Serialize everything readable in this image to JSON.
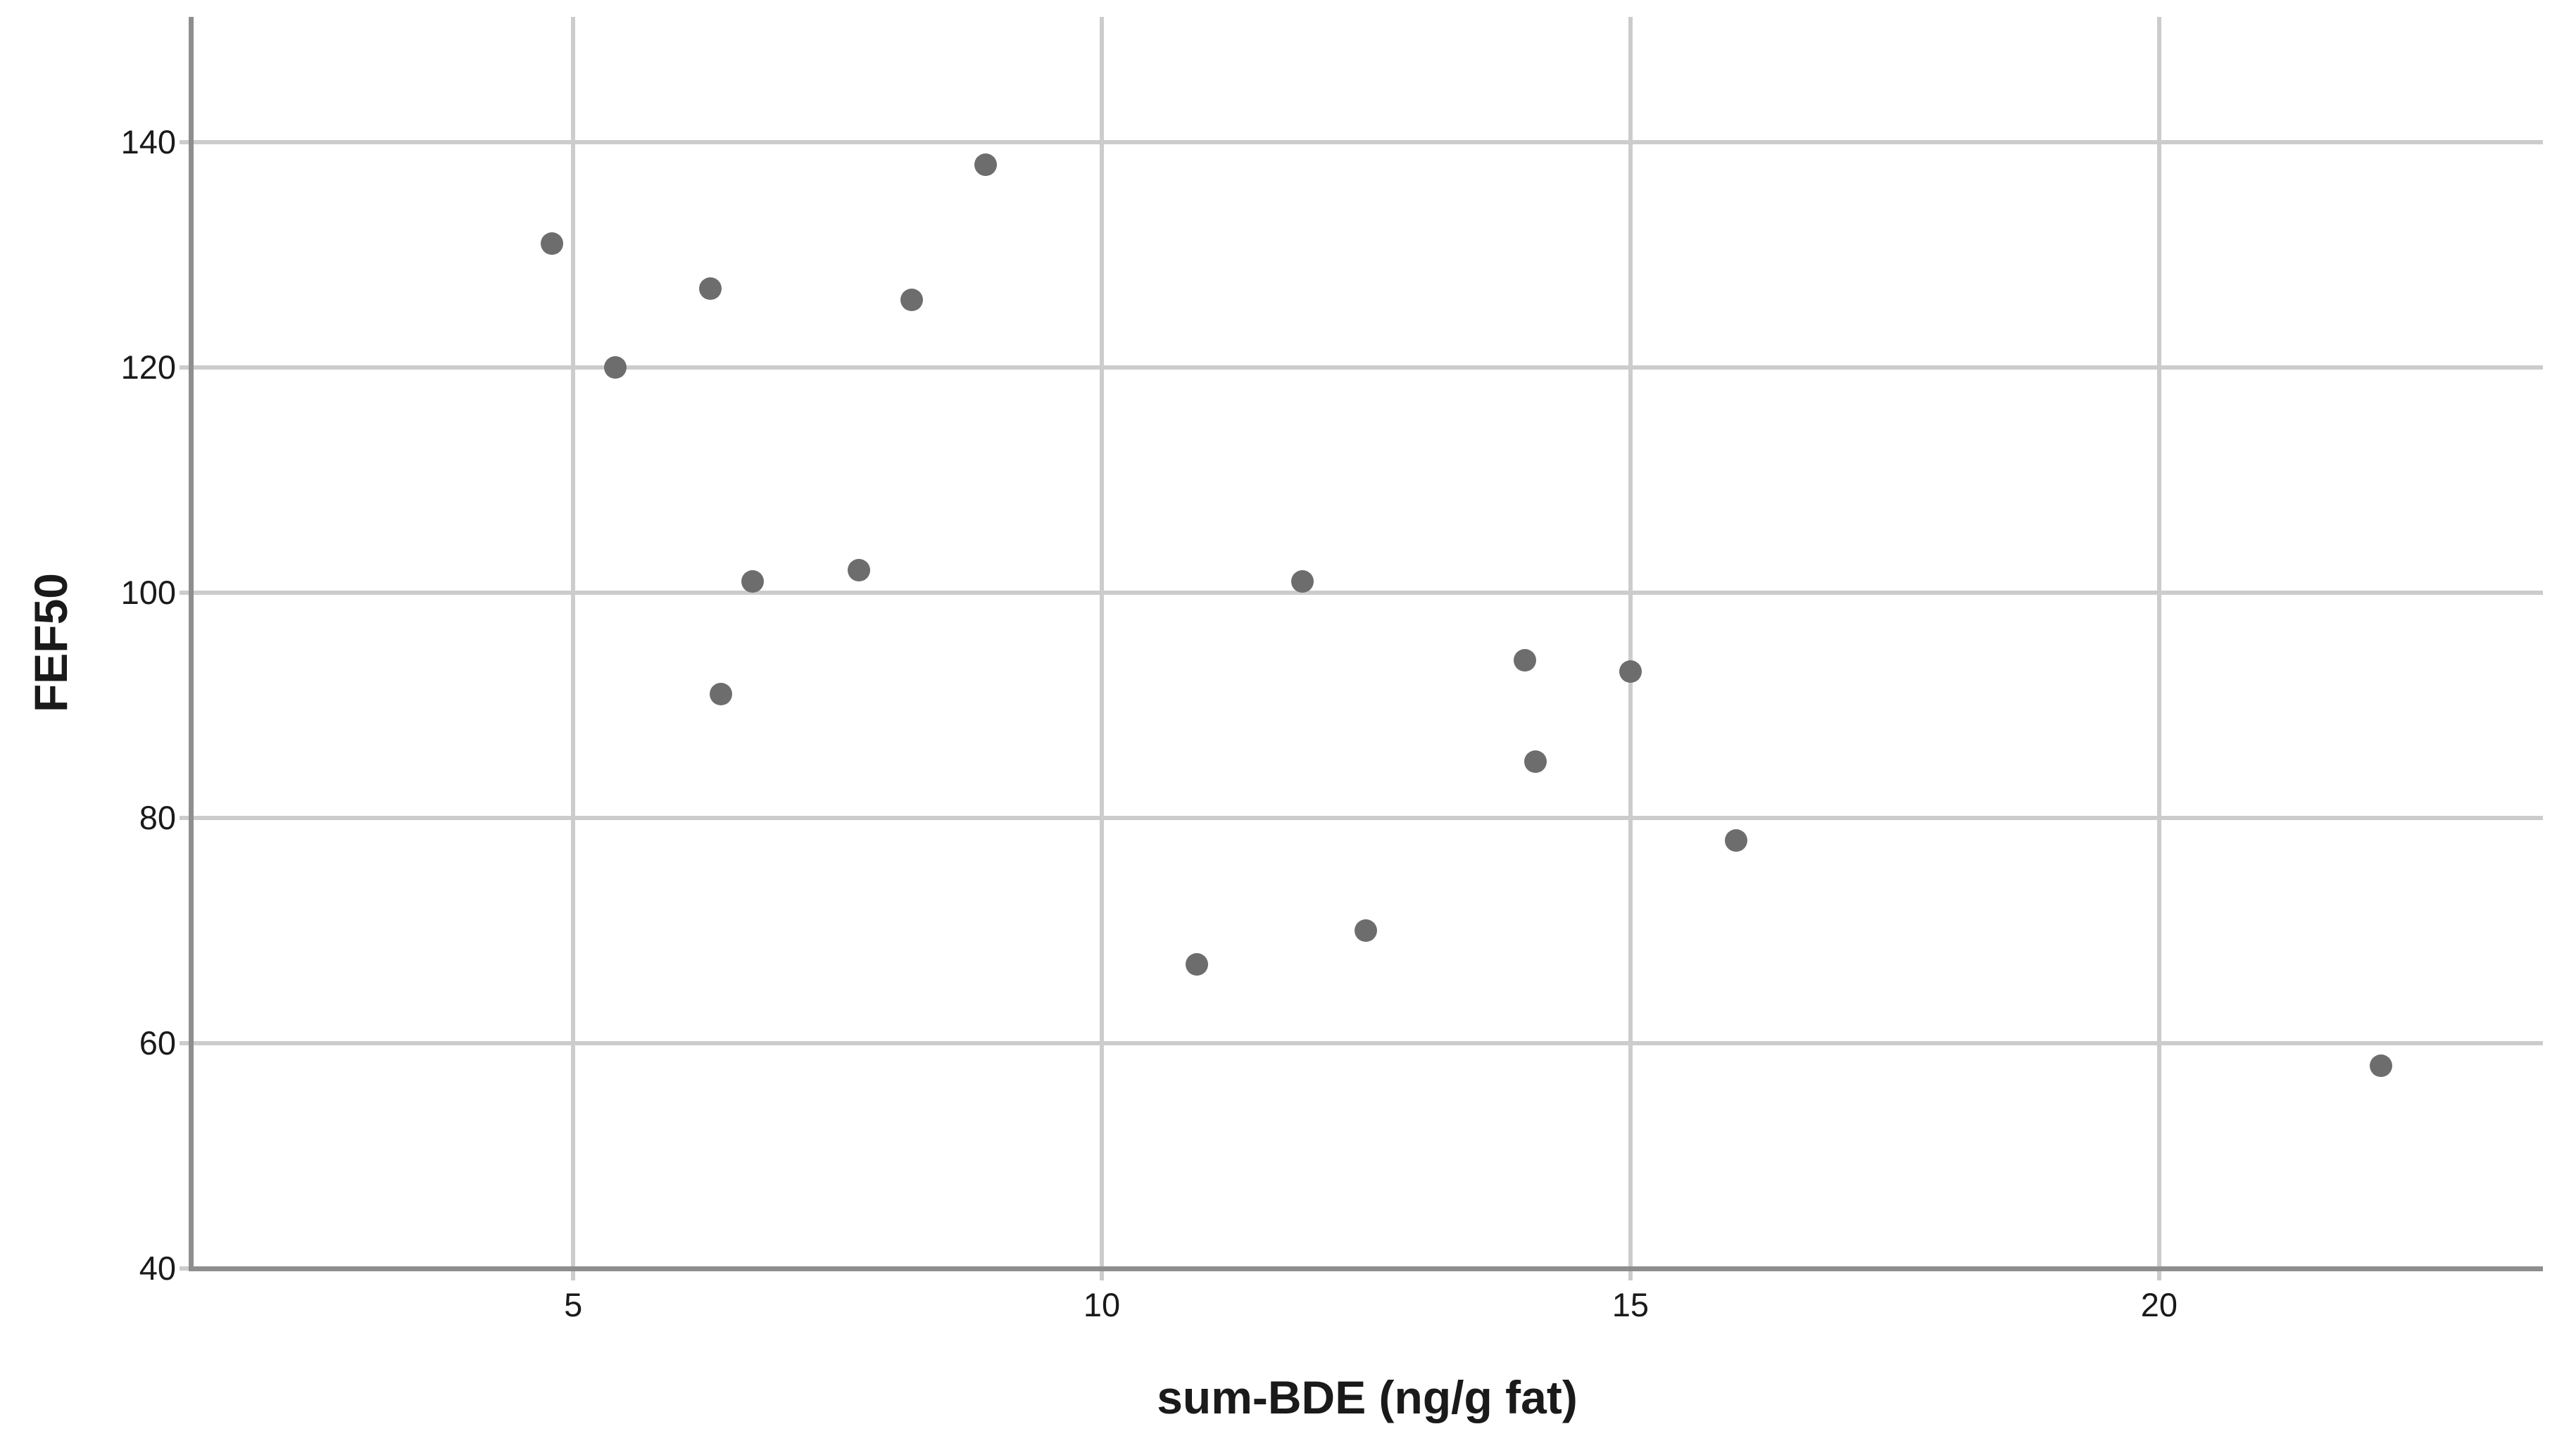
{
  "chart_data": {
    "type": "scatter",
    "title": "",
    "xlabel": "sum-BDE (ng/g fat)",
    "ylabel": "FEF50",
    "x_ticks": [
      5,
      10,
      15,
      20
    ],
    "y_ticks": [
      40,
      60,
      80,
      100,
      120,
      140
    ],
    "xlim": [
      1.39,
      23.63
    ],
    "ylim": [
      40,
      151.1
    ],
    "grid": true,
    "legend": false,
    "marker": "filled-circle",
    "points": [
      {
        "x": 4.8,
        "y": 131
      },
      {
        "x": 5.4,
        "y": 120
      },
      {
        "x": 6.3,
        "y": 127
      },
      {
        "x": 6.4,
        "y": 91
      },
      {
        "x": 6.7,
        "y": 101
      },
      {
        "x": 7.7,
        "y": 102
      },
      {
        "x": 8.2,
        "y": 126
      },
      {
        "x": 8.9,
        "y": 138
      },
      {
        "x": 10.9,
        "y": 67
      },
      {
        "x": 11.9,
        "y": 101
      },
      {
        "x": 12.5,
        "y": 70
      },
      {
        "x": 14.0,
        "y": 94
      },
      {
        "x": 14.1,
        "y": 85
      },
      {
        "x": 15.0,
        "y": 93
      },
      {
        "x": 16.0,
        "y": 78
      },
      {
        "x": 22.1,
        "y": 58
      }
    ],
    "colors": {
      "marker": "#6d6d6d",
      "grid": "#cccccc",
      "axis": "#8e8e8e",
      "text": "#1a1a1a",
      "background": "#ffffff"
    }
  }
}
